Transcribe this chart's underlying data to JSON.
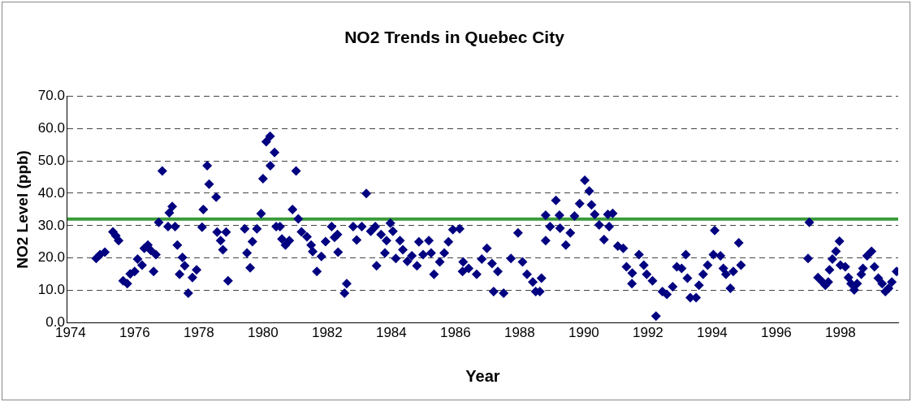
{
  "chart_data": {
    "type": "scatter",
    "title": "NO2 Trends in Quebec City",
    "xlabel": "Year",
    "ylabel": "NO2 Level (ppb)",
    "xlim": [
      1973.9,
      1999.8
    ],
    "xticks": [
      1974,
      1976,
      1978,
      1980,
      1982,
      1984,
      1986,
      1988,
      1990,
      1992,
      1994,
      1996,
      1998
    ],
    "ylim": [
      0,
      70
    ],
    "yticks": [
      {
        "value": 0,
        "label": "0.0"
      },
      {
        "value": 10,
        "label": "10.0"
      },
      {
        "value": 20,
        "label": "20.0"
      },
      {
        "value": 30,
        "label": "30.0"
      },
      {
        "value": 40,
        "label": "40.0"
      },
      {
        "value": 50,
        "label": "50.0"
      },
      {
        "value": 60,
        "label": "60.0"
      },
      {
        "value": 70,
        "label": "70.0"
      }
    ],
    "grid": "y",
    "legend": false,
    "marker": "diamond",
    "ref_lines": [
      {
        "axis": "y",
        "value": 32,
        "color": "#3a9a3a"
      }
    ],
    "series": [
      {
        "color": "#000080",
        "x": [
          1974.8,
          1974.92,
          1975.07,
          1975.32,
          1975.41,
          1975.5,
          1975.64,
          1975.77,
          1975.86,
          1976.0,
          1976.09,
          1976.23,
          1976.3,
          1976.41,
          1976.5,
          1976.59,
          1976.66,
          1976.75,
          1976.86,
          1977.04,
          1977.08,
          1977.17,
          1977.26,
          1977.33,
          1977.4,
          1977.49,
          1977.56,
          1977.67,
          1977.8,
          1977.93,
          1978.1,
          1978.14,
          1978.26,
          1978.32,
          1978.54,
          1978.57,
          1978.68,
          1978.75,
          1978.85,
          1978.91,
          1979.43,
          1979.5,
          1979.6,
          1979.67,
          1979.81,
          1979.94,
          1980.0,
          1980.1,
          1980.22,
          1980.23,
          1980.36,
          1980.41,
          1980.53,
          1980.59,
          1980.7,
          1980.82,
          1980.92,
          1981.03,
          1981.1,
          1981.2,
          1981.37,
          1981.5,
          1981.55,
          1981.68,
          1981.82,
          1981.95,
          1982.14,
          1982.23,
          1982.32,
          1982.34,
          1982.54,
          1982.61,
          1982.81,
          1982.92,
          1983.08,
          1983.22,
          1983.36,
          1983.5,
          1983.54,
          1983.68,
          1983.8,
          1983.85,
          1983.97,
          1984.05,
          1984.14,
          1984.27,
          1984.36,
          1984.5,
          1984.64,
          1984.8,
          1984.86,
          1984.99,
          1985.17,
          1985.24,
          1985.33,
          1985.51,
          1985.65,
          1985.78,
          1985.92,
          1986.13,
          1986.22,
          1986.24,
          1986.41,
          1986.66,
          1986.82,
          1986.98,
          1987.14,
          1987.19,
          1987.32,
          1987.5,
          1987.73,
          1987.95,
          1988.09,
          1988.23,
          1988.41,
          1988.5,
          1988.63,
          1988.68,
          1988.81,
          1988.81,
          1988.95,
          1989.13,
          1989.24,
          1989.26,
          1989.44,
          1989.58,
          1989.71,
          1989.87,
          1990.03,
          1990.17,
          1990.24,
          1990.34,
          1990.48,
          1990.63,
          1990.75,
          1990.79,
          1990.9,
          1991.06,
          1991.23,
          1991.33,
          1991.5,
          1991.51,
          1991.72,
          1991.87,
          1991.96,
          1992.14,
          1992.25,
          1992.45,
          1992.59,
          1992.77,
          1992.9,
          1993.05,
          1993.18,
          1993.23,
          1993.32,
          1993.5,
          1993.59,
          1993.72,
          1993.86,
          1994.04,
          1994.08,
          1994.26,
          1994.35,
          1994.43,
          1994.57,
          1994.66,
          1994.83,
          1994.9,
          1996.99,
          1997.03,
          1997.3,
          1997.44,
          1997.53,
          1997.62,
          1997.66,
          1997.75,
          1997.86,
          1997.97,
          1998.0,
          1998.15,
          1998.25,
          1998.33,
          1998.43,
          1998.52,
          1998.65,
          1998.7,
          1998.83,
          1998.97,
          1999.06,
          1999.18,
          1999.3,
          1999.4,
          1999.5,
          1999.6,
          1999.75
        ],
        "values": [
          19.9,
          21.1,
          21.8,
          28.1,
          26.9,
          25.4,
          13.0,
          12.1,
          15.1,
          15.9,
          19.7,
          17.8,
          23.0,
          24.0,
          22.4,
          15.9,
          21.1,
          31.0,
          46.9,
          29.7,
          34.0,
          35.9,
          29.7,
          24.0,
          15.0,
          20.2,
          17.6,
          9.2,
          14.0,
          16.4,
          29.5,
          35.0,
          48.5,
          42.8,
          38.8,
          28.0,
          25.4,
          22.6,
          28.0,
          13.0,
          29.0,
          21.6,
          17.0,
          25.1,
          29.0,
          33.7,
          44.5,
          55.9,
          57.6,
          48.5,
          52.6,
          29.7,
          29.7,
          25.9,
          24.0,
          25.4,
          35.0,
          46.9,
          32.1,
          28.1,
          26.6,
          24.0,
          22.0,
          15.9,
          20.5,
          25.1,
          29.7,
          26.4,
          27.3,
          21.8,
          9.2,
          12.1,
          29.7,
          25.6,
          29.7,
          39.9,
          28.3,
          29.7,
          17.6,
          27.3,
          21.6,
          25.4,
          30.8,
          28.3,
          19.9,
          25.4,
          22.6,
          19.0,
          20.7,
          17.6,
          25.0,
          21.1,
          25.4,
          21.6,
          15.0,
          18.8,
          21.6,
          25.0,
          28.8,
          29.0,
          15.9,
          18.8,
          16.8,
          15.0,
          19.7,
          23.0,
          18.3,
          9.7,
          15.9,
          9.2,
          19.9,
          27.8,
          18.8,
          15.0,
          12.6,
          9.7,
          9.7,
          13.8,
          33.2,
          25.4,
          29.7,
          37.8,
          33.2,
          29.2,
          24.0,
          27.8,
          33.0,
          36.8,
          44.0,
          40.7,
          36.4,
          33.5,
          30.2,
          25.7,
          33.5,
          29.7,
          33.8,
          23.7,
          23.0,
          17.3,
          12.1,
          15.4,
          21.1,
          17.8,
          15.0,
          13.0,
          2.1,
          9.7,
          8.8,
          11.2,
          17.3,
          16.8,
          21.1,
          13.8,
          7.8,
          7.8,
          11.6,
          15.0,
          17.8,
          21.1,
          28.5,
          20.7,
          16.8,
          15.0,
          10.7,
          15.9,
          24.7,
          17.8,
          19.9,
          31.0,
          14.0,
          12.6,
          11.6,
          12.6,
          16.4,
          19.7,
          22.1,
          25.2,
          17.8,
          17.3,
          14.0,
          12.1,
          10.2,
          12.1,
          15.0,
          16.8,
          20.7,
          22.1,
          17.3,
          13.8,
          12.1,
          9.7,
          10.7,
          12.6,
          15.9
        ]
      }
    ]
  }
}
